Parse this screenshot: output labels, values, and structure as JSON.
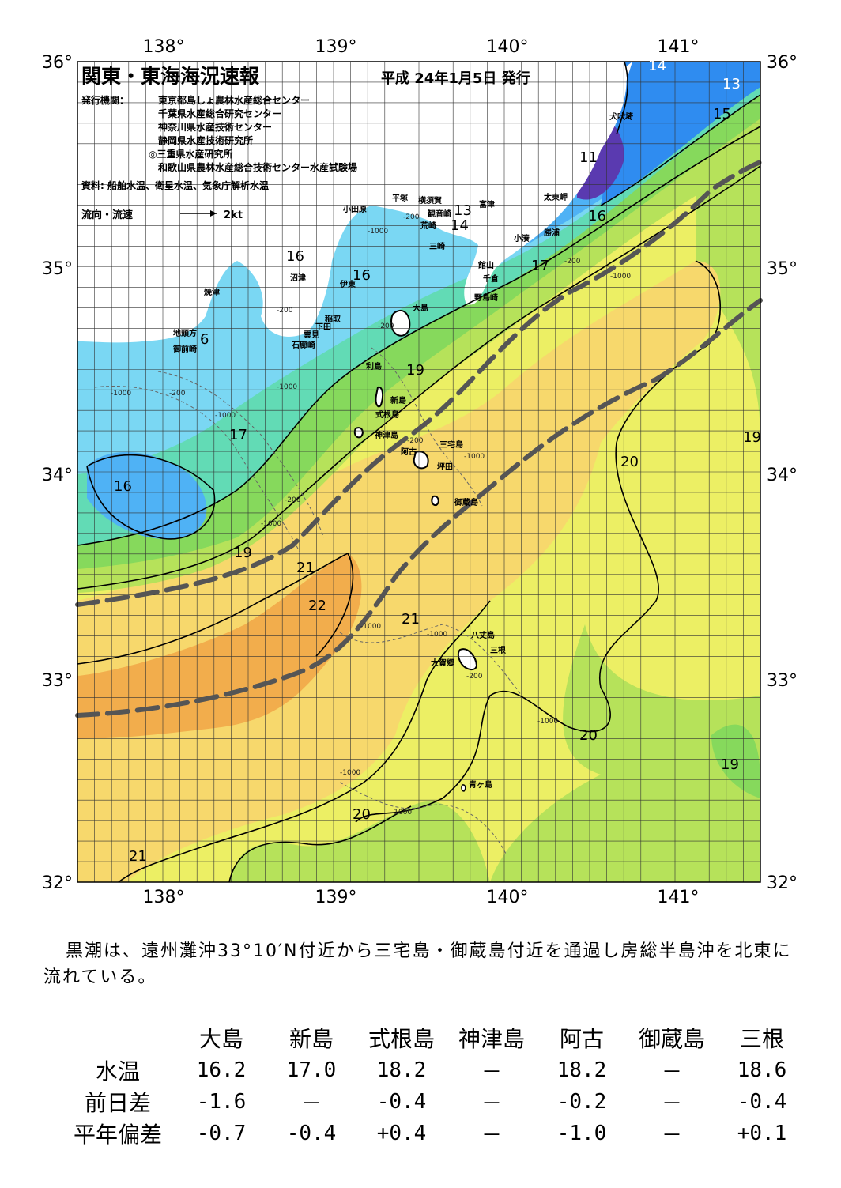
{
  "map": {
    "title": "関東・東海海況速報",
    "issue_date": "平成 24年1月5日 発行",
    "publisher_label": "発行機関：",
    "publishers": [
      "東京都島しょ農林水産総合センター",
      "千葉県水産総合研究センター",
      "神奈川県水産技術センター",
      "静岡県水産技術研究所",
      "◎三重県水産研究所",
      "和歌山県農林水産総合技術センター水産試験場"
    ],
    "sources": "資料: 船舶水温、衛星水温、気象庁解析水温",
    "flow_legend_label": "流向・流速",
    "flow_legend_unit": "2kt",
    "lon_ticks": [
      "138°",
      "139°",
      "140°",
      "141°"
    ],
    "lat_ticks": [
      "36°",
      "35°",
      "34°",
      "33°",
      "32°"
    ],
    "colors": {
      "sst_13": "#1d60d8",
      "sst_14": "#2f8cf0",
      "sst_15": "#4fb2f5",
      "sst_16": "#7ad7f3",
      "sst_17": "#62dbb5",
      "sst_18": "#86d95c",
      "sst_19": "#b6e25a",
      "sst_20": "#ecef64",
      "sst_21": "#f7d86c",
      "sst_22": "#f2ad4c",
      "cold_core": "#5a3ab0",
      "kuroshio_axis": "#555555"
    },
    "place_names": [
      "犬吠埼",
      "太東岬",
      "勝浦",
      "小湊",
      "富津",
      "観音崎",
      "平塚",
      "横須賀",
      "荒崎",
      "三崎",
      "小田原",
      "館山",
      "千倉",
      "野島崎",
      "沼津",
      "伊東",
      "稲取",
      "下田",
      "焼津",
      "雲見",
      "石廊崎",
      "地頭方",
      "御前崎",
      "大島",
      "利島",
      "新島",
      "式根島",
      "神津島",
      "三宅島",
      "阿古",
      "坪田",
      "御蔵島",
      "八丈島",
      "三根",
      "大賀郷",
      "青ヶ島"
    ],
    "isotherm_labels": [
      "14",
      "13",
      "15",
      "11",
      "13",
      "14",
      "16",
      "16",
      "16",
      "17",
      "6",
      "19",
      "17",
      "16",
      "19",
      "21",
      "22",
      "21",
      "20",
      "19",
      "20",
      "19",
      "20",
      "21"
    ],
    "isobath_labels": [
      "-1000",
      "-200",
      "-1000",
      "-200",
      "-1000",
      "-200",
      "-1000",
      "-200",
      "-1000",
      "-200",
      "-1000",
      "-200",
      "-1000",
      "-1000",
      "-200",
      "-1000",
      "-1000",
      "-1000",
      "-1000",
      "-200"
    ]
  },
  "summary_text": "黒潮は、遠州灘沖33°10′N付近から三宅島・御蔵島付近を通過し房総半島沖を北東に流れている。",
  "table": {
    "columns": [
      "大島",
      "新島",
      "式根島",
      "神津島",
      "阿古",
      "御蔵島",
      "三根"
    ],
    "rows": [
      {
        "label": "水温",
        "values": [
          "16.2",
          "17.0",
          "18.2",
          "－",
          "18.2",
          "－",
          "18.6"
        ]
      },
      {
        "label": "前日差",
        "values": [
          "-1.6",
          "－",
          "-0.4",
          "－",
          "-0.2",
          "－",
          "-0.4"
        ]
      },
      {
        "label": "平年偏差",
        "values": [
          "-0.7",
          "-0.4",
          "+0.4",
          "－",
          "-1.0",
          "－",
          "+0.1"
        ]
      }
    ]
  }
}
